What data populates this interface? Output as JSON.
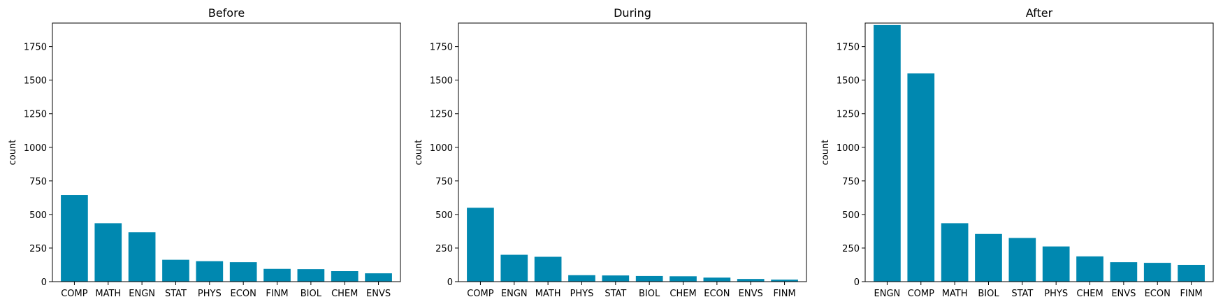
{
  "chart_data": [
    {
      "type": "bar",
      "title": "Before",
      "xlabel": "",
      "ylabel": "count",
      "ylim": [
        0,
        1925
      ],
      "yticks": [
        0,
        250,
        500,
        750,
        1000,
        1250,
        1500,
        1750
      ],
      "categories": [
        "COMP",
        "MATH",
        "ENGN",
        "STAT",
        "PHYS",
        "ECON",
        "FINM",
        "BIOL",
        "CHEM",
        "ENVS"
      ],
      "values": [
        645,
        435,
        368,
        163,
        152,
        145,
        95,
        93,
        78,
        62
      ],
      "color": "#0088B0"
    },
    {
      "type": "bar",
      "title": "During",
      "xlabel": "",
      "ylabel": "count",
      "ylim": [
        0,
        1925
      ],
      "yticks": [
        0,
        250,
        500,
        750,
        1000,
        1250,
        1500,
        1750
      ],
      "categories": [
        "COMP",
        "ENGN",
        "MATH",
        "PHYS",
        "STAT",
        "BIOL",
        "CHEM",
        "ECON",
        "ENVS",
        "FINM"
      ],
      "values": [
        550,
        200,
        185,
        48,
        46,
        42,
        40,
        30,
        20,
        15
      ],
      "color": "#0088B0"
    },
    {
      "type": "bar",
      "title": "After",
      "xlabel": "",
      "ylabel": "count",
      "ylim": [
        0,
        1925
      ],
      "yticks": [
        0,
        250,
        500,
        750,
        1000,
        1250,
        1500,
        1750
      ],
      "categories": [
        "ENGN",
        "COMP",
        "MATH",
        "BIOL",
        "STAT",
        "PHYS",
        "CHEM",
        "ENVS",
        "ECON",
        "FINM"
      ],
      "values": [
        1910,
        1550,
        435,
        355,
        325,
        262,
        188,
        145,
        140,
        125
      ],
      "color": "#0088B0"
    }
  ]
}
